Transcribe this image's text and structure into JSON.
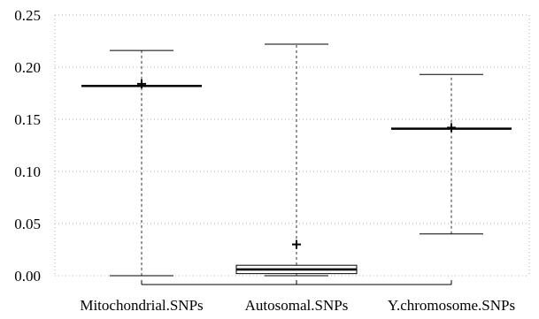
{
  "chart_data": {
    "type": "box",
    "categories": [
      "Mitochondrial.SNPs",
      "Autosomal.SNPs",
      "Y.chromosome.SNPs"
    ],
    "ylim": [
      0,
      0.25
    ],
    "yticks": [
      "0.00",
      "0.05",
      "0.10",
      "0.15",
      "0.20",
      "0.25"
    ],
    "grid": "dotted",
    "boxes": [
      {
        "name": "Mitochondrial.SNPs",
        "whisker_low": 0.0,
        "q1": 0.182,
        "median": 0.182,
        "q3": 0.182,
        "whisker_high": 0.216,
        "mean": 0.184
      },
      {
        "name": "Autosomal.SNPs",
        "whisker_low": 0.0,
        "q1": 0.002,
        "median": 0.006,
        "q3": 0.01,
        "whisker_high": 0.222,
        "mean": 0.03
      },
      {
        "name": "Y.chromosome.SNPs",
        "whisker_low": 0.04,
        "q1": 0.141,
        "median": 0.141,
        "q3": 0.141,
        "whisker_high": 0.193,
        "mean": 0.142
      }
    ]
  }
}
